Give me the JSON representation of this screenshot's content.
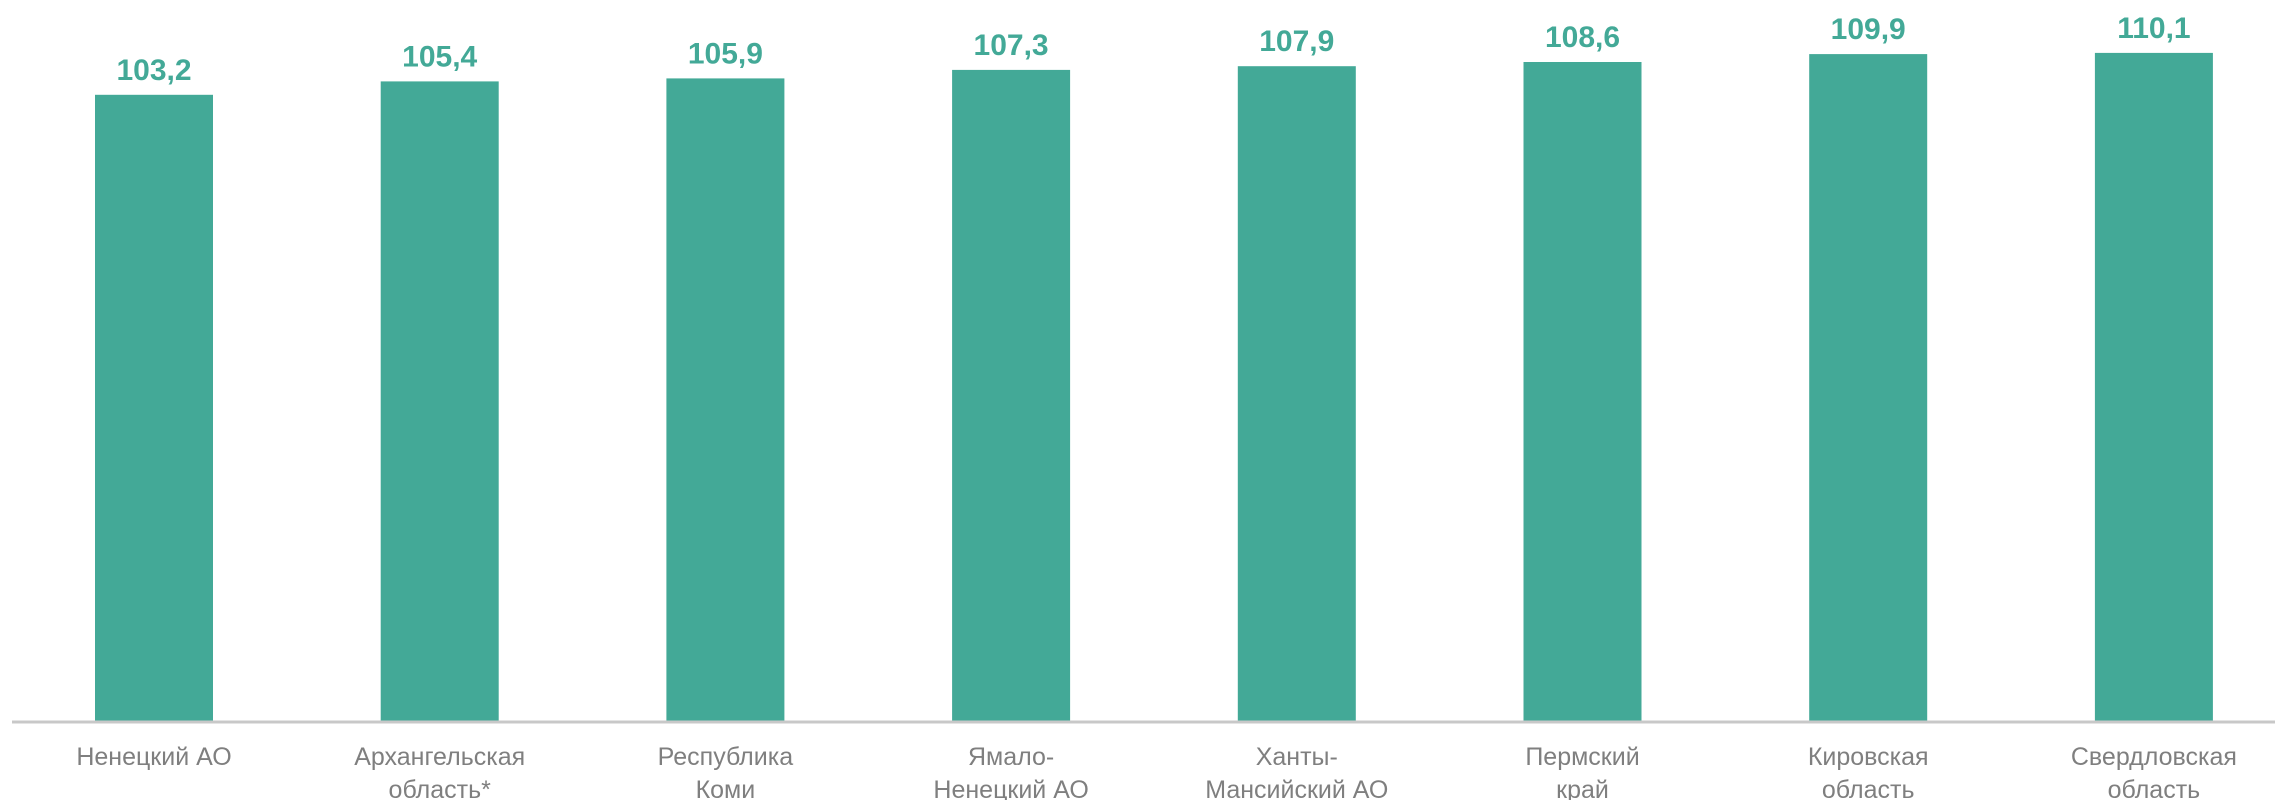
{
  "chart_data": {
    "type": "bar",
    "categories": [
      [
        "Ненецкий АО"
      ],
      [
        "Архангельская",
        "область*"
      ],
      [
        "Республика",
        "Коми"
      ],
      [
        "Ямало-",
        "Ненецкий АО"
      ],
      [
        "Ханты-",
        "Мансийский АО"
      ],
      [
        "Пермский",
        "край"
      ],
      [
        "Кировская",
        "область"
      ],
      [
        "Свердловская",
        "область"
      ]
    ],
    "values": [
      103.2,
      105.4,
      105.9,
      107.3,
      107.9,
      108.6,
      109.9,
      110.1
    ],
    "data_labels": [
      "103,2",
      "105,4",
      "105,9",
      "107,3",
      "107,9",
      "108,6",
      "109,9",
      "110,1"
    ],
    "title": "",
    "xlabel": "",
    "ylabel": "",
    "ylim": [
      0,
      118.8
    ],
    "grid": false,
    "legend": "none",
    "bar_color": "#43a997",
    "label_color": "#43a997",
    "category_color": "#7f7f7f"
  }
}
